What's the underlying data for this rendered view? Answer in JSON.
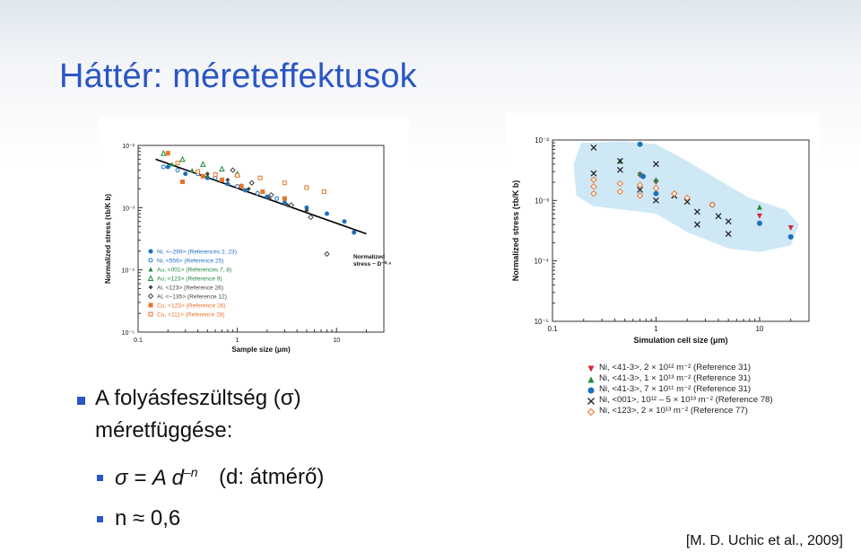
{
  "slide": {
    "title": "Háttér: mérete­ffektusok",
    "bullet1_line1": "A folyásfeszültség (σ)",
    "bullet1_line2": "méretfüggése:",
    "sub1": "σ = A d",
    "sub1_exp": "–n",
    "sub1_note": "(d: átmérő)",
    "sub2": "n ≈ 0,6",
    "reference": "[M. D. Uchic et al., 2009]",
    "accent_color": "#2a56c6"
  },
  "chart_data": [
    {
      "type": "scatter",
      "xlabel": "Sample size (μm)",
      "ylabel": "Normalized stress (τb/K b)",
      "xscale": "log",
      "yscale": "log",
      "xlim": [
        0.1,
        30
      ],
      "ylim": [
        1e-05,
        0.01
      ],
      "x_ticks": [
        "0.1",
        "1",
        "10"
      ],
      "y_ticks": [
        "10⁻²",
        "10⁻³",
        "10⁻⁴",
        "10⁻⁵"
      ],
      "fit_annotation_1": "Normalized",
      "fit_annotation_2": "stress ~ D⁻⁰·⁶",
      "fit_line": {
        "x": [
          0.15,
          20
        ],
        "y": [
          0.006,
          0.00038
        ]
      },
      "legend_placement": "lower-left",
      "legend": [
        {
          "label": "Ni, <~269> (References 2, 23)",
          "color": "#1d6fc2",
          "marker": "circle-filled"
        },
        {
          "label": "Ni, <556> (Reference 25)",
          "color": "#1d6fc2",
          "marker": "circle-open"
        },
        {
          "label": "Au, <001> (References 7, 8)",
          "color": "#1f8a3b",
          "marker": "triangle-filled"
        },
        {
          "label": "Au, <123> (Reference 9)",
          "color": "#1f8a3b",
          "marker": "triangle-open"
        },
        {
          "label": "Al, <123> (Reference 26)",
          "color": "#444444",
          "marker": "diamond-filled"
        },
        {
          "label": "Al, <~135> (Reference 12)",
          "color": "#444444",
          "marker": "diamond-open"
        },
        {
          "label": "Cu, <123> (Reference 26)",
          "color": "#e8732a",
          "marker": "square-filled"
        },
        {
          "label": "Cu, <111> (Reference 28)",
          "color": "#e8732a",
          "marker": "square-open"
        }
      ],
      "series": [
        {
          "legend_index": 0,
          "x": [
            0.2,
            0.3,
            0.5,
            0.8,
            1.2,
            2,
            3,
            5,
            8,
            12,
            15
          ],
          "y": [
            0.0045,
            0.0035,
            0.003,
            0.0024,
            0.0019,
            0.0015,
            0.0012,
            0.001,
            0.0008,
            0.0006,
            0.0004
          ]
        },
        {
          "legend_index": 1,
          "x": [
            0.18,
            0.25,
            0.4,
            0.6,
            1.0,
            1.6,
            2.5
          ],
          "y": [
            0.0045,
            0.004,
            0.0035,
            0.003,
            0.0022,
            0.0017,
            0.0014
          ]
        },
        {
          "legend_index": 2,
          "x": [
            0.22,
            0.35,
            0.5,
            0.7,
            1.1
          ],
          "y": [
            0.005,
            0.004,
            0.0033,
            0.0028,
            0.0023
          ]
        },
        {
          "legend_index": 3,
          "x": [
            0.18,
            0.28,
            0.45,
            0.7,
            1.0
          ],
          "y": [
            0.0075,
            0.006,
            0.005,
            0.0042,
            0.0035
          ]
        },
        {
          "legend_index": 4,
          "x": [
            0.5,
            0.8,
            1.3,
            2.1,
            3.2,
            5
          ],
          "y": [
            0.0035,
            0.0028,
            0.002,
            0.0014,
            0.0011,
            0.0009
          ]
        },
        {
          "legend_index": 5,
          "x": [
            0.9,
            1.4,
            2.2,
            3.5,
            5.5,
            8
          ],
          "y": [
            0.004,
            0.0025,
            0.0016,
            0.0011,
            0.0007,
            0.00018
          ]
        },
        {
          "legend_index": 6,
          "x": [
            0.2,
            0.28,
            0.45,
            0.7,
            1.1,
            1.8,
            3
          ],
          "y": [
            0.0075,
            0.0026,
            0.0032,
            0.0028,
            0.0022,
            0.0018,
            0.0014
          ]
        },
        {
          "legend_index": 7,
          "x": [
            0.25,
            0.4,
            0.6,
            1.0,
            1.7,
            3.0,
            5.0,
            7.5
          ],
          "y": [
            0.0052,
            0.0038,
            0.0034,
            0.0033,
            0.003,
            0.0025,
            0.0021,
            0.0018
          ]
        }
      ]
    },
    {
      "type": "scatter",
      "xlabel": "Simulation cell size (μm)",
      "ylabel": "Normalized stress (τb/K b)",
      "xscale": "log",
      "yscale": "log",
      "xlim": [
        0.1,
        30
      ],
      "ylim": [
        1e-05,
        0.01
      ],
      "x_ticks": [
        "0.1",
        "1",
        "10"
      ],
      "y_ticks": [
        "10⁻²",
        "10⁻³",
        "10⁻⁴",
        "10⁻⁵"
      ],
      "region_color": "#cfe8f6",
      "legend_placement": "below",
      "legend": [
        {
          "label": "Ni, <41-3>, 2 × 10¹² m⁻² (Reference 31)",
          "color": "#d7263d",
          "marker": "triangle-down"
        },
        {
          "label": "Ni, <41-3>, 1 × 10¹³ m⁻² (Reference 31)",
          "color": "#1f8a3b",
          "marker": "triangle-filled"
        },
        {
          "label": "Ni, <41-3>, 7 × 10¹¹ m⁻² (Reference 31)",
          "color": "#1d6fc2",
          "marker": "circle-filled"
        },
        {
          "label": "Ni, <001>, 10¹² – 5 × 10¹³ m⁻² (Reference 78)",
          "color": "#222222",
          "marker": "cross"
        },
        {
          "label": "Ni, <123>, 2 × 10¹³ m⁻² (Reference 77)",
          "color": "#e8732a",
          "marker": "diamond-open"
        }
      ],
      "series": [
        {
          "legend_index": 0,
          "x": [
            0.7,
            1.0,
            10,
            20
          ],
          "y": [
            0.0026,
            0.002,
            0.00055,
            0.00035
          ]
        },
        {
          "legend_index": 1,
          "x": [
            0.45,
            0.7,
            1.0,
            10
          ],
          "y": [
            0.0045,
            0.0028,
            0.0022,
            0.00078
          ]
        },
        {
          "legend_index": 2,
          "x": [
            0.7,
            0.75,
            1.0,
            3.5,
            10,
            20
          ],
          "y": [
            0.0085,
            0.0025,
            0.0013,
            0.00085,
            0.00042,
            0.00025
          ]
        },
        {
          "legend_index": 3,
          "x": [
            0.25,
            0.25,
            0.45,
            0.45,
            0.7,
            1.0,
            1.0,
            1.5,
            2.0,
            2.5,
            2.5,
            4.0,
            5.0,
            5.0
          ],
          "y": [
            0.0075,
            0.0028,
            0.0045,
            0.0032,
            0.0015,
            0.004,
            0.001,
            0.0012,
            0.00095,
            0.00065,
            0.0004,
            0.00055,
            0.00045,
            0.00028
          ]
        },
        {
          "legend_index": 4,
          "x": [
            0.25,
            0.25,
            0.25,
            0.45,
            0.45,
            0.7,
            0.7,
            1.0,
            1.5,
            2.0,
            3.5
          ],
          "y": [
            0.0022,
            0.0017,
            0.0013,
            0.0019,
            0.0014,
            0.0018,
            0.0012,
            0.0016,
            0.0013,
            0.0011,
            0.00085
          ]
        }
      ]
    }
  ]
}
